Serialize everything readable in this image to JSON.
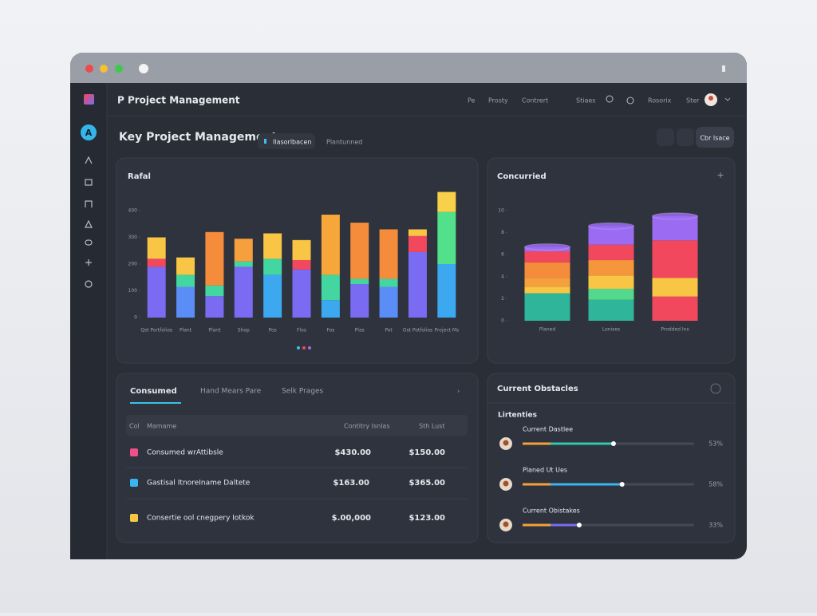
{
  "window": {
    "app_title": "P Project Management",
    "nav": [
      "Pe",
      "Prosty",
      "Contrert",
      "Stiaes",
      "Rosorix",
      "Ster"
    ]
  },
  "sidebar": {
    "avatar": "A"
  },
  "header": {
    "title": "Key Project Management",
    "tabs": [
      "Ilasorlbacen",
      "Plantunned"
    ],
    "button": "Cbr lsace"
  },
  "chart_data": [
    {
      "type": "bar",
      "stacked": true,
      "title": "Rafal",
      "categories": [
        "Qst Portfolios",
        "Plant",
        "Plant",
        "Shop",
        "Pos",
        "Flos",
        "Fos",
        "Plas",
        "Pot",
        "Ost Potfolios",
        "Project Ms"
      ],
      "series": [
        {
          "colors": [
            "#7a6cf2",
            "#5a8df5",
            "#7a6cf2",
            "#7a6cf2",
            "#3ca8f0",
            "#7a6cf2",
            "#3ca8f0",
            "#7a6cf2",
            "#5a8df5",
            "#7a6cf2",
            "#3ca8f0"
          ],
          "values": [
            190,
            115,
            80,
            190,
            160,
            180,
            65,
            125,
            115,
            245,
            200
          ]
        },
        {
          "colors": [
            "#f2485e",
            "#43d6a0",
            "#43d6a0",
            "#43d6a0",
            "#43d6a0",
            "#f2485e",
            "#43d6a0",
            "#43d6a0",
            "#43d6a0",
            "#f2485e",
            "#52e08a"
          ],
          "values": [
            30,
            45,
            40,
            20,
            60,
            35,
            95,
            20,
            30,
            60,
            195
          ]
        },
        {
          "colors": [
            "#f8c544",
            "#f8c544",
            "#f58c3c",
            "#f5a03c",
            "#f8c544",
            "#f8c544",
            "#f7a63a",
            "#f58c3c",
            "#f58c3c",
            "#f8c544",
            "#f8d04a"
          ],
          "values": [
            80,
            65,
            200,
            85,
            95,
            75,
            225,
            210,
            185,
            25,
            75
          ]
        }
      ],
      "ylim": [
        0,
        500
      ],
      "yticks": [
        0,
        100,
        200,
        300,
        400
      ]
    },
    {
      "type": "bar",
      "stacked": true,
      "style": "cylinder",
      "title": "Concurried",
      "categories": [
        "Planed",
        "Lonises",
        "Prodded Ins"
      ],
      "series": [
        {
          "colors": [
            "#2fb59a",
            "#2fb59a",
            "#f2485e"
          ],
          "values": [
            2.5,
            1.9,
            2.2
          ]
        },
        {
          "colors": [
            "#f8c544",
            "#52d98e",
            "#f8c544"
          ],
          "values": [
            0.6,
            1.0,
            1.7
          ]
        },
        {
          "colors": [
            "#f5a03c",
            "#f8c544",
            "#f2485e"
          ],
          "values": [
            0.8,
            1.2,
            null
          ]
        },
        {
          "colors": [
            "#f58c3c",
            "#f5963c",
            "#f2485e"
          ],
          "values": [
            1.4,
            1.4,
            3.4
          ]
        },
        {
          "colors": [
            "#f2485e",
            "#f2485e",
            "#f2485e"
          ],
          "values": [
            1.0,
            1.4,
            null
          ]
        },
        {
          "colors": [
            "#9b6cf2",
            "#9b6cf2",
            "#9b6cf2"
          ],
          "values": [
            0.4,
            1.7,
            2.2
          ]
        }
      ],
      "ylim": [
        0,
        10.5
      ],
      "yticks": [
        0,
        2,
        4,
        6,
        8,
        10
      ]
    }
  ],
  "table": {
    "tabs": [
      "Consumed",
      "Hand Mears Pare",
      "Selk Prages"
    ],
    "columns": [
      "Col",
      "Mamame",
      "Contitry Isnlas",
      "Sth Lust"
    ],
    "rows": [
      [
        "Consumed wrAttibsle",
        "$430.00",
        "$150.00"
      ],
      [
        "Gastisal ItnoreIname Daltete",
        "$163.00",
        "$365.00"
      ],
      [
        "Consertie ool cnegpery Iotkok",
        "$.00,000",
        "$123.00"
      ]
    ]
  },
  "obstacles": {
    "title": "Current Obstacles",
    "subtitle": "Lirtenties",
    "items": [
      {
        "label": "Current Dastlee",
        "percent": 53,
        "percent_label": "53%"
      },
      {
        "label": "Planed Ut Ues",
        "percent": 58,
        "percent_label": "58%"
      },
      {
        "label": "Current Obistakes",
        "percent": 33,
        "percent_label": "33%"
      }
    ]
  }
}
